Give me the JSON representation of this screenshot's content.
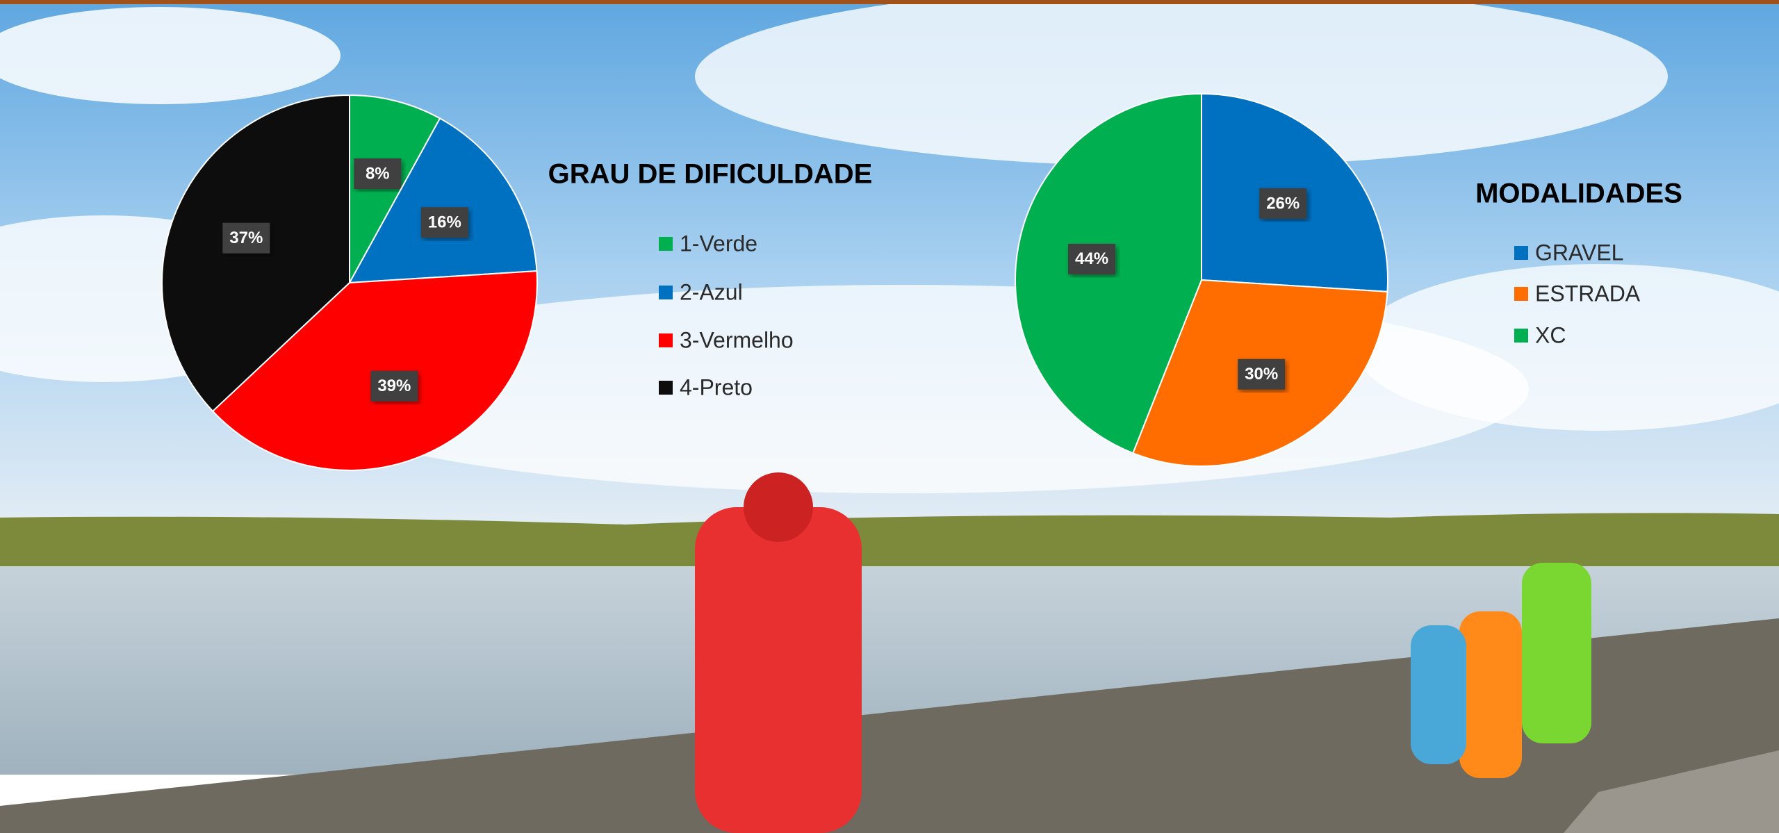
{
  "chart_data": [
    {
      "type": "pie",
      "title": "GRAU DE DIFICULDADE",
      "categories": [
        "1-Verde",
        "2-Azul",
        "3-Vermelho",
        "4-Preto"
      ],
      "values": [
        8,
        16,
        39,
        37
      ],
      "value_labels": [
        "8%",
        "16%",
        "39%",
        "37%"
      ],
      "colors": [
        "#00b050",
        "#0070c0",
        "#ff0000",
        "#0d0d0d"
      ]
    },
    {
      "type": "pie",
      "title": "MODALIDADES",
      "categories": [
        "GRAVEL",
        "ESTRADA",
        "XC"
      ],
      "values": [
        26,
        30,
        44
      ],
      "value_labels": [
        "26%",
        "30%",
        "44%"
      ],
      "colors": [
        "#0070c0",
        "#ff6d00",
        "#00b050"
      ]
    }
  ]
}
